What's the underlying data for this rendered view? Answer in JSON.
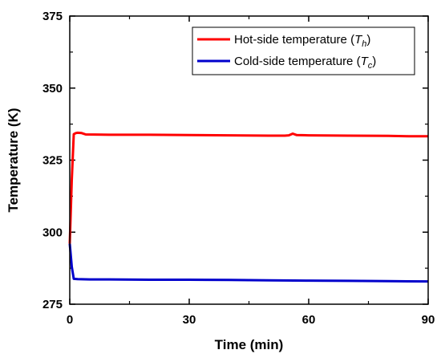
{
  "chart_data": {
    "type": "line",
    "xlabel": "Time (min)",
    "ylabel": "Temperature (K)",
    "xlim": [
      0,
      90
    ],
    "ylim": [
      275,
      375
    ],
    "xticks": [
      0,
      30,
      60,
      90
    ],
    "yticks": [
      275,
      300,
      325,
      350,
      375
    ],
    "grid": false,
    "legend_position": "top-right",
    "series": [
      {
        "name": "Hot-side temperature (T_h)",
        "legend": {
          "main": "Hot-side temperature (",
          "var": "T",
          "sub": "h",
          "close": ")"
        },
        "color": "#ff0000",
        "x": [
          0,
          0.5,
          1,
          1.5,
          2,
          3,
          4,
          10,
          20,
          30,
          40,
          50,
          54,
          55,
          56,
          57,
          60,
          70,
          80,
          85,
          90
        ],
        "y": [
          296,
          318,
          334,
          334.4,
          334.5,
          334.4,
          333.9,
          333.8,
          333.8,
          333.7,
          333.6,
          333.5,
          333.5,
          333.6,
          334.2,
          333.7,
          333.6,
          333.5,
          333.4,
          333.3,
          333.3
        ]
      },
      {
        "name": "Cold-side temperature (T_c)",
        "legend": {
          "main": "Cold-side temperature (",
          "var": "T",
          "sub": "c",
          "close": ")"
        },
        "color": "#0000cc",
        "x": [
          0,
          0.5,
          1,
          2,
          5,
          10,
          20,
          30,
          40,
          50,
          60,
          70,
          80,
          90
        ],
        "y": [
          296,
          288,
          283.8,
          283.7,
          283.6,
          283.6,
          283.5,
          283.5,
          283.4,
          283.3,
          283.2,
          283.1,
          283.0,
          282.9
        ]
      }
    ]
  }
}
